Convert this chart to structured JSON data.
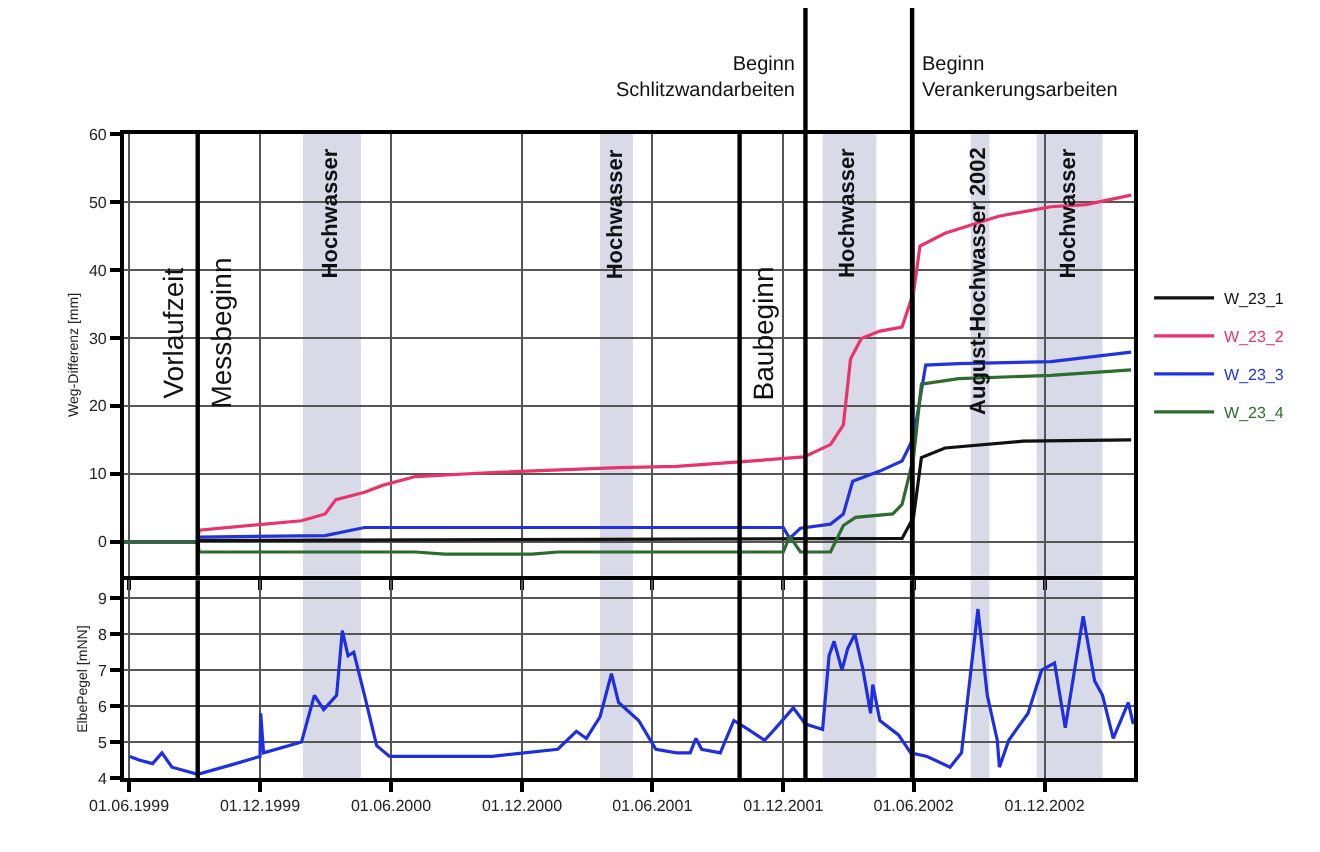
{
  "chart_data": [
    {
      "type": "line",
      "ylabel": "Weg-Differenz [mm]",
      "xlim": [
        "1999-05-25",
        "2003-04-05"
      ],
      "ylim": [
        -5,
        60
      ],
      "yticks": [
        0,
        10,
        20,
        30,
        40,
        50,
        60
      ],
      "xticks": [
        {
          "value": "1999-06-01",
          "label": null
        },
        {
          "value": "1999-12-01",
          "label": null
        },
        {
          "value": "2000-06-01",
          "label": null
        },
        {
          "value": "2000-12-01",
          "label": null
        },
        {
          "value": "2001-06-01",
          "label": null
        },
        {
          "value": "2001-12-01",
          "label": null
        },
        {
          "value": "2002-06-01",
          "label": null
        },
        {
          "value": "2002-12-01",
          "label": null
        }
      ],
      "tick_labels": "y",
      "grid": true,
      "legend": "right",
      "series": [
        {
          "name": "W_23_1",
          "color": "#111111",
          "x": [
            "1999-05-25",
            "1999-09-05",
            "1999-09-07",
            "2002-05-16",
            "2002-06-01",
            "2002-06-12",
            "2002-07-15",
            "2002-11-01",
            "2003-04-01"
          ],
          "values": [
            0,
            0,
            0.2,
            0.5,
            3.6,
            12.4,
            13.8,
            14.8,
            15.0
          ]
        },
        {
          "name": "W_23_2",
          "color": "#e8336b",
          "x": [
            "1999-05-25",
            "1999-09-05",
            "1999-09-07",
            "2000-01-28",
            "2000-03-01",
            "2000-03-16",
            "2000-04-25",
            "2000-05-20",
            "2000-07-05",
            "2000-10-20",
            "2001-04-15",
            "2001-07-05",
            "2001-10-20",
            "2001-12-30",
            "2002-02-05",
            "2002-02-23",
            "2002-03-05",
            "2002-03-20",
            "2002-04-15",
            "2002-05-16",
            "2002-06-01",
            "2002-06-10",
            "2002-07-15",
            "2002-09-28",
            "2002-12-10",
            "2003-01-28",
            "2003-04-01"
          ],
          "values": [
            0,
            0,
            1.7,
            3.1,
            4.1,
            6.2,
            7.3,
            8.3,
            9.6,
            10.2,
            10.9,
            11.1,
            11.9,
            12.5,
            14.3,
            17.2,
            26.9,
            29.9,
            31.0,
            31.6,
            36.7,
            43.5,
            45.4,
            47.9,
            49.3,
            49.6,
            51.0
          ]
        },
        {
          "name": "W_23_3",
          "color": "#2233dd",
          "x": [
            "1999-05-25",
            "1999-09-05",
            "1999-09-07",
            "2000-03-01",
            "2000-04-25",
            "2001-12-01",
            "2001-12-10",
            "2001-12-25",
            "2002-02-05",
            "2002-02-23",
            "2002-03-08",
            "2002-04-15",
            "2002-05-16",
            "2002-06-01",
            "2002-06-18",
            "2002-08-03",
            "2002-12-10",
            "2003-04-01"
          ],
          "values": [
            0,
            0,
            0.7,
            0.9,
            2.1,
            2.1,
            0.5,
            2.0,
            2.6,
            4.1,
            8.9,
            10.4,
            11.9,
            15.3,
            26.0,
            26.2,
            26.5,
            27.9
          ]
        },
        {
          "name": "W_23_4",
          "color": "#2e6b2e",
          "x": [
            "1999-05-25",
            "1999-09-05",
            "1999-09-07",
            "2000-07-05",
            "2000-08-15",
            "2000-12-15",
            "2001-01-20",
            "2001-12-01",
            "2001-12-10",
            "2001-12-25",
            "2002-02-05",
            "2002-02-23",
            "2002-03-12",
            "2002-05-03",
            "2002-05-16",
            "2002-06-01",
            "2002-06-12",
            "2002-08-03",
            "2002-12-10",
            "2003-04-01"
          ],
          "values": [
            0,
            0,
            -1.5,
            -1.5,
            -1.8,
            -1.8,
            -1.5,
            -1.5,
            0.8,
            -1.5,
            -1.5,
            2.4,
            3.6,
            4.1,
            5.5,
            12.4,
            23.2,
            24.0,
            24.5,
            25.3
          ]
        }
      ],
      "ref_lines": [
        {
          "axis": "x",
          "value": "1999-09-05",
          "label": "Messbeginn",
          "color": "#000000"
        },
        {
          "axis": "x",
          "value": "2001-10-01",
          "label": "Baubeginn",
          "color": "#000000"
        },
        {
          "axis": "x",
          "value": "2002-01-01",
          "label": "Beginn\nSchlitzwandarbeiten",
          "color": "#000000"
        },
        {
          "axis": "x",
          "value": "2002-05-30",
          "label": "Beginn\nVerankerungsarbeiten",
          "color": "#000000"
        }
      ],
      "bands": [
        {
          "axis": "x",
          "from": "2000-01-30",
          "to": "2000-04-20",
          "label": "Hochwasser",
          "color": "#d8dae8"
        },
        {
          "axis": "x",
          "from": "2001-03-20",
          "to": "2001-05-05",
          "label": "Hochwasser",
          "color": "#d8dae8"
        },
        {
          "axis": "x",
          "from": "2002-01-25",
          "to": "2002-04-10",
          "label": "Hochwasser",
          "color": "#d8dae8"
        },
        {
          "axis": "x",
          "from": "2002-08-20",
          "to": "2002-09-15",
          "label": "August-Hochwasser 2002",
          "color": "#d8dae8"
        },
        {
          "axis": "x",
          "from": "2002-11-20",
          "to": "2003-02-20",
          "label": "Hochwasser",
          "color": "#d8dae8"
        }
      ],
      "annotations": [
        "Vorlaufzeit"
      ]
    },
    {
      "type": "line",
      "ylabel": "ElbePegel [mNN]",
      "xlim": [
        "1999-05-25",
        "2003-04-05"
      ],
      "ylim": [
        4,
        9.5
      ],
      "yticks": [
        4,
        5,
        6,
        7,
        8,
        9
      ],
      "xticks": [
        {
          "value": "1999-06-01",
          "label": "01.06.1999"
        },
        {
          "value": "1999-12-01",
          "label": "01.12.1999"
        },
        {
          "value": "2000-06-01",
          "label": "01.06.2000"
        },
        {
          "value": "2000-12-01",
          "label": "01.12.2000"
        },
        {
          "value": "2001-06-01",
          "label": "01.06.2001"
        },
        {
          "value": "2001-12-01",
          "label": "01.12.2001"
        },
        {
          "value": "2002-06-01",
          "label": "01.06.2002"
        },
        {
          "value": "2002-12-01",
          "label": "01.12.2002"
        }
      ],
      "grid": true,
      "series": [
        {
          "color": "#1f2fe0",
          "x": [
            "1999-06-02",
            "1999-06-15",
            "1999-07-04",
            "1999-07-17",
            "1999-07-31",
            "1999-09-05",
            "1999-10-28",
            "1999-12-01",
            "1999-12-02",
            "1999-12-06",
            "2000-01-28",
            "2000-02-08",
            "2000-02-15",
            "2000-02-28",
            "2000-03-17",
            "2000-03-25",
            "2000-04-02",
            "2000-04-10",
            "2000-04-25",
            "2000-05-12",
            "2000-05-30",
            "2000-07-23",
            "2000-10-20",
            "2001-01-20",
            "2001-02-15",
            "2001-03-01",
            "2001-03-20",
            "2001-04-05",
            "2001-04-15",
            "2001-05-13",
            "2001-06-06",
            "2001-07-05",
            "2001-07-24",
            "2001-08-01",
            "2001-08-09",
            "2001-09-04",
            "2001-09-23",
            "2001-10-13",
            "2001-11-05",
            "2001-11-21",
            "2001-12-15",
            "2002-01-01",
            "2002-01-25",
            "2002-02-03",
            "2002-02-10",
            "2002-02-21",
            "2002-03-01",
            "2002-03-11",
            "2002-03-22",
            "2002-04-02",
            "2002-04-05",
            "2002-04-15",
            "2002-05-11",
            "2002-05-28",
            "2002-06-20",
            "2002-07-22",
            "2002-08-07",
            "2002-08-30",
            "2002-09-12",
            "2002-09-26",
            "2002-09-29",
            "2002-10-12",
            "2002-11-08",
            "2002-11-27",
            "2002-12-15",
            "2002-12-30",
            "2003-01-24",
            "2003-02-09",
            "2003-02-20",
            "2003-03-07",
            "2003-03-28",
            "2003-04-04"
          ],
          "values": [
            4.6,
            4.5,
            4.4,
            4.7,
            4.3,
            4.1,
            4.4,
            4.6,
            5.8,
            4.7,
            5.0,
            5.8,
            6.3,
            5.9,
            6.3,
            8.1,
            7.4,
            7.5,
            6.3,
            4.9,
            4.6,
            4.6,
            4.6,
            4.8,
            5.3,
            5.1,
            5.7,
            6.9,
            6.1,
            5.6,
            4.8,
            4.7,
            4.7,
            5.1,
            4.8,
            4.7,
            5.6,
            5.35,
            5.05,
            5.4,
            5.95,
            5.5,
            5.35,
            7.4,
            7.8,
            7.0,
            7.6,
            8.0,
            7.05,
            5.8,
            6.6,
            5.6,
            5.2,
            4.7,
            4.6,
            4.3,
            4.7,
            8.7,
            6.3,
            5.05,
            4.3,
            5.05,
            5.8,
            7.0,
            7.2,
            5.4,
            8.5,
            6.7,
            6.3,
            5.1,
            6.1,
            5.5
          ]
        }
      ],
      "ref_lines": [
        {
          "axis": "x",
          "value": "1999-09-05",
          "color": "#000000"
        },
        {
          "axis": "x",
          "value": "2001-10-01",
          "color": "#000000"
        },
        {
          "axis": "x",
          "value": "2002-01-01",
          "color": "#000000"
        },
        {
          "axis": "x",
          "value": "2002-05-30",
          "color": "#000000"
        }
      ],
      "bands": [
        {
          "axis": "x",
          "from": "2000-01-30",
          "to": "2000-04-20",
          "color": "#d8dae8"
        },
        {
          "axis": "x",
          "from": "2001-03-20",
          "to": "2001-05-05",
          "color": "#d8dae8"
        },
        {
          "axis": "x",
          "from": "2002-01-25",
          "to": "2002-04-10",
          "color": "#d8dae8"
        },
        {
          "axis": "x",
          "from": "2002-08-20",
          "to": "2002-09-15",
          "color": "#d8dae8"
        },
        {
          "axis": "x",
          "from": "2002-11-20",
          "to": "2003-02-20",
          "color": "#d8dae8"
        }
      ]
    }
  ]
}
